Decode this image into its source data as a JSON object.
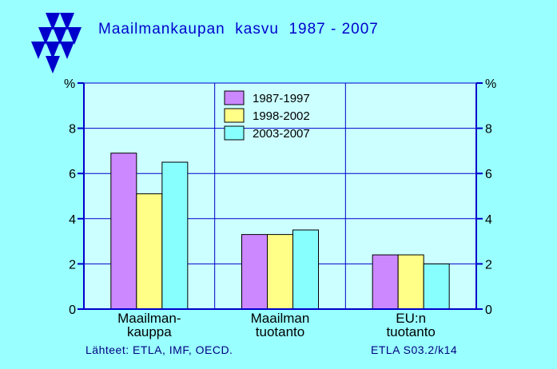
{
  "title": "Maailmankaupan  kasvu  1987 - 2007",
  "footer": {
    "source": "Lähteet:  ETLA, IMF, OECD.",
    "code": "ETLA S03.2/k14"
  },
  "chart_data": {
    "type": "bar",
    "title": "Maailmankaupan  kasvu  1987 - 2007",
    "ylabel": "%",
    "ylim": [
      0,
      10
    ],
    "yticks": [
      0,
      2,
      4,
      6,
      8
    ],
    "categories": [
      [
        "Maailman-",
        "kauppa"
      ],
      [
        "Maailman",
        "tuotanto"
      ],
      [
        "EU:n",
        "tuotanto"
      ]
    ],
    "series": [
      {
        "name": "1987-1997",
        "color": "#cc88ff",
        "values": [
          6.9,
          3.3,
          2.4
        ]
      },
      {
        "name": "1998-2002",
        "color": "#ffff88",
        "values": [
          5.1,
          3.3,
          2.4
        ]
      },
      {
        "name": "2003-2007",
        "color": "#88ffff",
        "values": [
          6.5,
          3.5,
          2.0
        ]
      }
    ],
    "grid": true,
    "legend": "top-center",
    "axis_color": "#0000cc",
    "plot_background": "#ccffff"
  }
}
